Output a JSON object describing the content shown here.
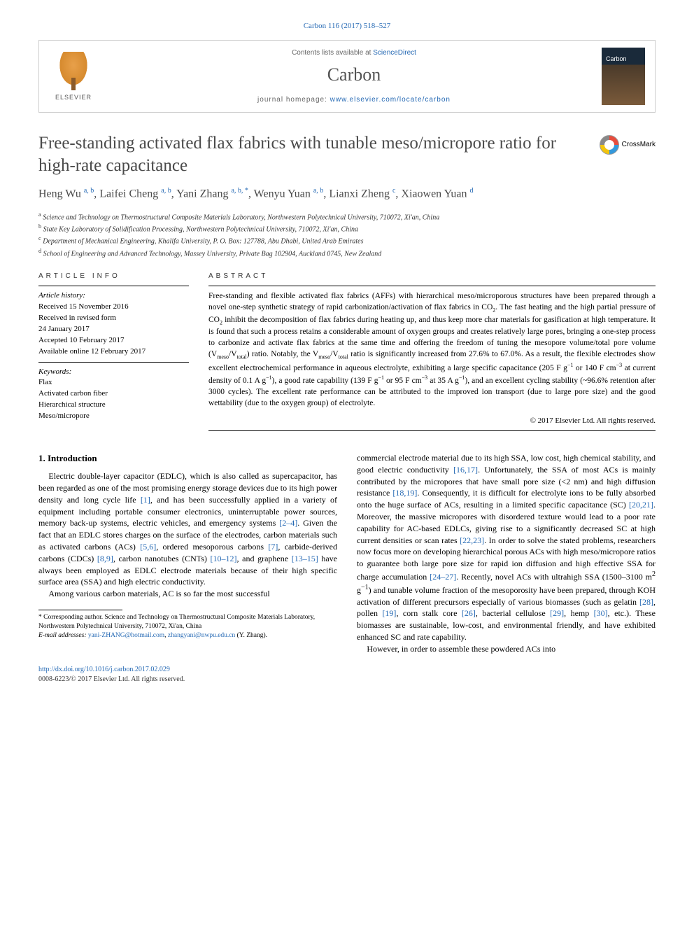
{
  "journal_ref": "Carbon 116 (2017) 518–527",
  "header": {
    "publisher": "ELSEVIER",
    "contents_prefix": "Contents lists available at ",
    "contents_link": "ScienceDirect",
    "journal_name": "Carbon",
    "homepage_prefix": "journal homepage: ",
    "homepage_url": "www.elsevier.com/locate/carbon"
  },
  "crossmark": "CrossMark",
  "title": "Free-standing activated flax fabrics with tunable meso/micropore ratio for high-rate capacitance",
  "authors_html": "Heng Wu <sup>a, b</sup>, Laifei Cheng <sup>a, b</sup>, Yani Zhang <sup>a, b, *</sup>, Wenyu Yuan <sup>a, b</sup>, Lianxi Zheng <sup>c</sup>, Xiaowen Yuan <sup>d</sup>",
  "affiliations": [
    {
      "sup": "a",
      "text": "Science and Technology on Thermostructural Composite Materials Laboratory, Northwestern Polytechnical University, 710072, Xi'an, China"
    },
    {
      "sup": "b",
      "text": "State Key Laboratory of Solidification Processing, Northwestern Polytechnical University, 710072, Xi'an, China"
    },
    {
      "sup": "c",
      "text": "Department of Mechanical Engineering, Khalifa University, P. O. Box: 127788, Abu Dhabi, United Arab Emirates"
    },
    {
      "sup": "d",
      "text": "School of Engineering and Advanced Technology, Massey University, Private Bag 102904, Auckland 0745, New Zealand"
    }
  ],
  "article_info": {
    "label": "ARTICLE INFO",
    "history_head": "Article history:",
    "history": [
      "Received 15 November 2016",
      "Received in revised form",
      "24 January 2017",
      "Accepted 10 February 2017",
      "Available online 12 February 2017"
    ],
    "keywords_head": "Keywords:",
    "keywords": [
      "Flax",
      "Activated carbon fiber",
      "Hierarchical structure",
      "Meso/micropore"
    ]
  },
  "abstract": {
    "label": "ABSTRACT",
    "text_html": "Free-standing and flexible activated flax fabrics (AFFs) with hierarchical meso/microporous structures have been prepared through a novel one-step synthetic strategy of rapid carbonization/activation of flax fabrics in CO<sub>2</sub>. The fast heating and the high partial pressure of CO<sub>2</sub> inhibit the decomposition of flax fabrics during heating up, and thus keep more char materials for gasification at high temperature. It is found that such a process retains a considerable amount of oxygen groups and creates relatively large pores, bringing a one-step process to carbonize and activate flax fabrics at the same time and offering the freedom of tuning the mesopore volume/total pore volume (V<sub>meso</sub>/V<sub>total</sub>) ratio. Notably, the V<sub>meso</sub>/V<sub>total</sub> ratio is significantly increased from 27.6% to 67.0%. As a result, the flexible electrodes show excellent electrochemical performance in aqueous electrolyte, exhibiting a large specific capacitance (205 F g<sup>−1</sup> or 140 F cm<sup>−3</sup> at current density of 0.1 A g<sup>−1</sup>), a good rate capability (139 F g<sup>−1</sup> or 95 F cm<sup>−3</sup> at 35 A g<sup>−1</sup>), and an excellent cycling stability (~96.6% retention after 3000 cycles). The excellent rate performance can be attributed to the improved ion transport (due to large pore size) and the good wettability (due to the oxygen group) of electrolyte.",
    "copyright": "© 2017 Elsevier Ltd. All rights reserved."
  },
  "intro": {
    "heading": "1. Introduction",
    "p1_html": "Electric double-layer capacitor (EDLC), which is also called as supercapacitor, has been regarded as one of the most promising energy storage devices due to its high power density and long cycle life <a class='ref' href='#'>[1]</a>, and has been successfully applied in a variety of equipment including portable consumer electronics, uninterruptable power sources, memory back-up systems, electric vehicles, and emergency systems <a class='ref' href='#'>[2–4]</a>. Given the fact that an EDLC stores charges on the surface of the electrodes, carbon materials such as activated carbons (ACs) <a class='ref' href='#'>[5,6]</a>, ordered mesoporous carbons <a class='ref' href='#'>[7]</a>, carbide-derived carbons (CDCs) <a class='ref' href='#'>[8,9]</a>, carbon nanotubes (CNTs) <a class='ref' href='#'>[10–12]</a>, and graphene <a class='ref' href='#'>[13–15]</a> have always been employed as EDLC electrode materials because of their high specific surface area (SSA) and high electric conductivity.",
    "p2_html": "Among various carbon materials, AC is so far the most successful commercial electrode material due to its high SSA, low cost, high chemical stability, and good electric conductivity <a class='ref' href='#'>[16,17]</a>. Unfortunately, the SSA of most ACs is mainly contributed by the micropores that have small pore size (&lt;2 nm) and high diffusion resistance <a class='ref' href='#'>[18,19]</a>. Consequently, it is difficult for electrolyte ions to be fully absorbed onto the huge surface of ACs, resulting in a limited specific capacitance (SC) <a class='ref' href='#'>[20,21]</a>. Moreover, the massive micropores with disordered texture would lead to a poor rate capability for AC-based EDLCs, giving rise to a significantly decreased SC at high current densities or scan rates <a class='ref' href='#'>[22,23]</a>. In order to solve the stated problems, researchers now focus more on developing hierarchical porous ACs with high meso/micropore ratios to guarantee both large pore size for rapid ion diffusion and high effective SSA for charge accumulation <a class='ref' href='#'>[24–27]</a>. Recently, novel ACs with ultrahigh SSA (1500–3100 m<sup>2</sup> g<sup>−1</sup>) and tunable volume fraction of the mesoporosity have been prepared, through KOH activation of different precursors especially of various biomasses (such as gelatin <a class='ref' href='#'>[28]</a>, pollen <a class='ref' href='#'>[19]</a>, corn stalk core <a class='ref' href='#'>[26]</a>, bacterial cellulose <a class='ref' href='#'>[29]</a>, hemp <a class='ref' href='#'>[30]</a>, etc.). These biomasses are sustainable, low-cost, and environmental friendly, and have exhibited enhanced SC and rate capability.",
    "p3_html": "However, in order to assemble these powdered ACs into"
  },
  "footnote": {
    "corr_html": "* Corresponding author. Science and Technology on Thermostructural Composite Materials Laboratory, Northwestern Polytechnical University, 710072, Xi'an, China",
    "email_label": "E-mail addresses:",
    "email1": "yani-ZHANG@hotmail.com",
    "email2": "zhangyani@nwpu.edu.cn",
    "email_suffix": "(Y. Zhang)."
  },
  "footer": {
    "doi": "http://dx.doi.org/10.1016/j.carbon.2017.02.029",
    "issn_line": "0008-6223/© 2017 Elsevier Ltd. All rights reserved."
  }
}
